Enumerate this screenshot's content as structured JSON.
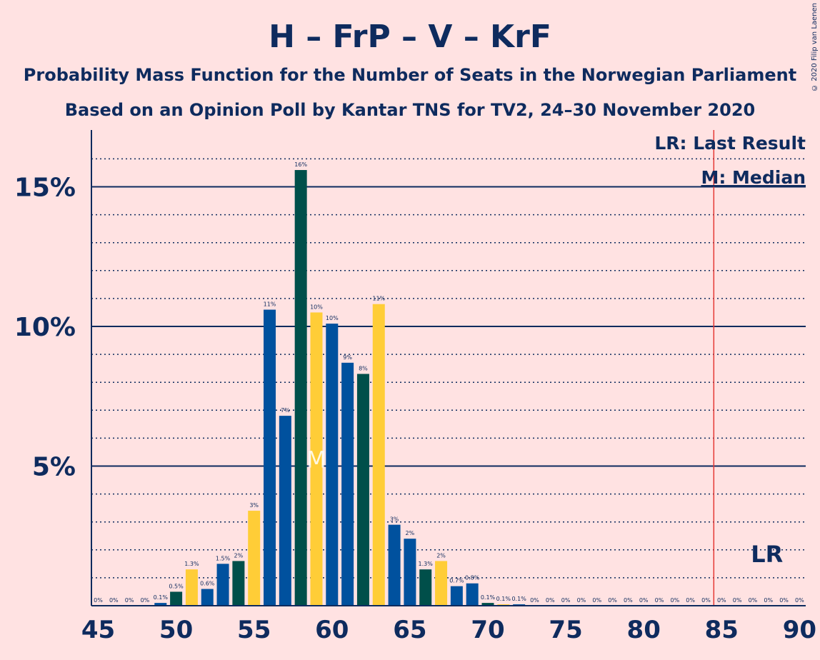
{
  "title": "H – FrP – V – KrF",
  "subtitle1": "Probability Mass Function for the Number of Seats in the Norwegian Parliament",
  "subtitle2": "Based on an Opinion Poll by Kantar TNS for TV2, 24–30 November 2020",
  "copyright": "© 2020 Filip van Laenen",
  "legend": {
    "lr": "LR: Last Result",
    "median": "M: Median"
  },
  "markers": {
    "median_label": "M",
    "median_seat": 59,
    "lr_label": "LR",
    "last_result_seat": 85
  },
  "colors": {
    "background": "#ffe2e2",
    "text": "#0e2b5e",
    "H": "#00519e",
    "KrF": "#ffcd37",
    "V": "#004f4a",
    "last_result_line": "#e53935"
  },
  "chart_data": {
    "type": "bar",
    "xlabel": "",
    "ylabel": "",
    "xlim": [
      45,
      90
    ],
    "ylim": [
      0,
      17
    ],
    "x_ticks": [
      45,
      50,
      55,
      60,
      65,
      70,
      75,
      80,
      85,
      90
    ],
    "y_major_ticks": [
      {
        "value": 5,
        "label": "5%"
      },
      {
        "value": 10,
        "label": "10%"
      },
      {
        "value": 15,
        "label": "15%"
      }
    ],
    "y_minor_step": 1,
    "grid": true,
    "legend_position": "top-right",
    "bars": [
      {
        "seat": 45,
        "value": 0,
        "label": "0%",
        "color": "H"
      },
      {
        "seat": 46,
        "value": 0,
        "label": "0%",
        "color": "KrF"
      },
      {
        "seat": 47,
        "value": 0,
        "label": "0%",
        "color": "V"
      },
      {
        "seat": 48,
        "value": 0,
        "label": "0%",
        "color": "H"
      },
      {
        "seat": 49,
        "value": 0.1,
        "label": "0.1%",
        "color": "H"
      },
      {
        "seat": 50,
        "value": 0.5,
        "label": "0.5%",
        "color": "V"
      },
      {
        "seat": 51,
        "value": 1.3,
        "label": "1.3%",
        "color": "KrF"
      },
      {
        "seat": 52,
        "value": 0.6,
        "label": "0.6%",
        "color": "H"
      },
      {
        "seat": 53,
        "value": 1.5,
        "label": "1.5%",
        "color": "H"
      },
      {
        "seat": 54,
        "value": 1.6,
        "label": "2%",
        "color": "V"
      },
      {
        "seat": 55,
        "value": 3.4,
        "label": "3%",
        "color": "KrF"
      },
      {
        "seat": 56,
        "value": 10.6,
        "label": "11%",
        "color": "H"
      },
      {
        "seat": 57,
        "value": 6.8,
        "label": "7%",
        "color": "H"
      },
      {
        "seat": 58,
        "value": 15.6,
        "label": "16%",
        "color": "V"
      },
      {
        "seat": 59,
        "value": 10.5,
        "label": "10%",
        "color": "KrF"
      },
      {
        "seat": 60,
        "value": 10.1,
        "label": "10%",
        "color": "H"
      },
      {
        "seat": 61,
        "value": 8.7,
        "label": "9%",
        "color": "H"
      },
      {
        "seat": 62,
        "value": 8.3,
        "label": "8%",
        "color": "V"
      },
      {
        "seat": 63,
        "value": 10.8,
        "label": "11%",
        "color": "KrF"
      },
      {
        "seat": 64,
        "value": 2.9,
        "label": "3%",
        "color": "H"
      },
      {
        "seat": 65,
        "value": 2.4,
        "label": "2%",
        "color": "H"
      },
      {
        "seat": 66,
        "value": 1.3,
        "label": "1.3%",
        "color": "V"
      },
      {
        "seat": 67,
        "value": 1.6,
        "label": "2%",
        "color": "KrF"
      },
      {
        "seat": 68,
        "value": 0.7,
        "label": "0.7%",
        "color": "H"
      },
      {
        "seat": 69,
        "value": 0.8,
        "label": "0.8%",
        "color": "H"
      },
      {
        "seat": 70,
        "value": 0.1,
        "label": "0.1%",
        "color": "V"
      },
      {
        "seat": 71,
        "value": 0.05,
        "label": "0.1%",
        "color": "KrF"
      },
      {
        "seat": 72,
        "value": 0.05,
        "label": "0.1%",
        "color": "H"
      },
      {
        "seat": 73,
        "value": 0,
        "label": "0%",
        "color": "H"
      },
      {
        "seat": 74,
        "value": 0,
        "label": "0%",
        "color": "V"
      },
      {
        "seat": 75,
        "value": 0,
        "label": "0%",
        "color": "KrF"
      },
      {
        "seat": 76,
        "value": 0,
        "label": "0%",
        "color": "H"
      },
      {
        "seat": 77,
        "value": 0,
        "label": "0%",
        "color": "H"
      },
      {
        "seat": 78,
        "value": 0,
        "label": "0%",
        "color": "V"
      },
      {
        "seat": 79,
        "value": 0,
        "label": "0%",
        "color": "KrF"
      },
      {
        "seat": 80,
        "value": 0,
        "label": "0%",
        "color": "H"
      },
      {
        "seat": 81,
        "value": 0,
        "label": "0%",
        "color": "H"
      },
      {
        "seat": 82,
        "value": 0,
        "label": "0%",
        "color": "V"
      },
      {
        "seat": 83,
        "value": 0,
        "label": "0%",
        "color": "KrF"
      },
      {
        "seat": 84,
        "value": 0,
        "label": "0%",
        "color": "H"
      },
      {
        "seat": 85,
        "value": 0,
        "label": "0%",
        "color": "H"
      },
      {
        "seat": 86,
        "value": 0,
        "label": "0%",
        "color": "V"
      },
      {
        "seat": 87,
        "value": 0,
        "label": "0%",
        "color": "KrF"
      },
      {
        "seat": 88,
        "value": 0,
        "label": "0%",
        "color": "H"
      },
      {
        "seat": 89,
        "value": 0,
        "label": "0%",
        "color": "H"
      },
      {
        "seat": 90,
        "value": 0,
        "label": "0%",
        "color": "V"
      }
    ]
  }
}
